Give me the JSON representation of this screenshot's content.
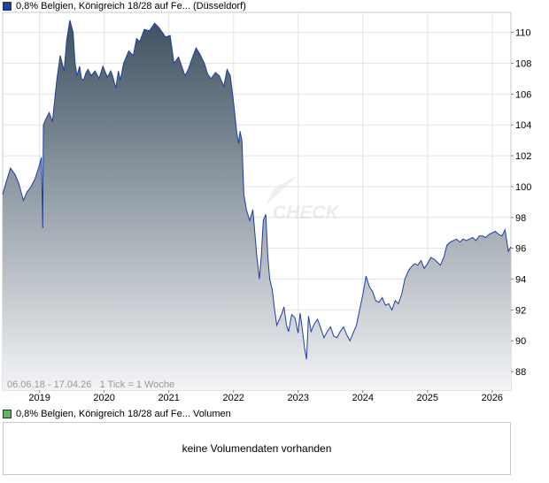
{
  "price_legend": {
    "label": "0,8% Belgien, Königreich 18/28 auf Fe... (Düsseldorf)",
    "color": "#1f3f9e"
  },
  "volume_legend": {
    "label": "0,8% Belgien, Königreich 18/28 auf Fe... Volumen",
    "color": "#5cb85c"
  },
  "watermark": "CHECK",
  "range_note": "06.06.18 - 17.04.26   1 Tick = 1 Woche",
  "volume_message": "keine Volumendaten vorhanden",
  "chart_data": {
    "type": "area",
    "x_ticks": [
      2019,
      2020,
      2021,
      2022,
      2023,
      2024,
      2025,
      2026
    ],
    "y_ticks": [
      88,
      90,
      92,
      94,
      96,
      98,
      100,
      102,
      104,
      106,
      108,
      110
    ],
    "xlim": [
      2018.43,
      2026.29
    ],
    "ylim": [
      86.8,
      111.3
    ],
    "grid": true,
    "line_color": "#1f3f9e",
    "fill_top_color": "#3e5160",
    "fill_bottom_color": "#f3f4f6",
    "series": [
      {
        "x": [
          2018.43,
          2018.5,
          2018.55,
          2018.62,
          2018.68,
          2018.75,
          2018.8,
          2018.87,
          2018.93,
          2019.0,
          2019.03,
          2019.05,
          2019.06,
          2019.1,
          2019.15,
          2019.2,
          2019.27,
          2019.32,
          2019.38,
          2019.42,
          2019.47,
          2019.52,
          2019.55,
          2019.58,
          2019.62,
          2019.65,
          2019.68,
          2019.72,
          2019.75,
          2019.8,
          2019.86,
          2019.92,
          2019.98,
          2020.05,
          2020.1,
          2020.13,
          2020.18,
          2020.22,
          2020.25,
          2020.3,
          2020.38,
          2020.45,
          2020.5,
          2020.55,
          2020.62,
          2020.7,
          2020.78,
          2020.85,
          2020.9,
          2020.95,
          2021.02,
          2021.08,
          2021.15,
          2021.2,
          2021.25,
          2021.3,
          2021.35,
          2021.42,
          2021.48,
          2021.55,
          2021.6,
          2021.65,
          2021.72,
          2021.78,
          2021.85,
          2021.9,
          2021.95,
          2022.0,
          2022.05,
          2022.08,
          2022.1,
          2022.13,
          2022.16,
          2022.2,
          2022.25,
          2022.3,
          2022.33,
          2022.36,
          2022.4,
          2022.43,
          2022.46,
          2022.5,
          2022.53,
          2022.56,
          2022.6,
          2022.63,
          2022.67,
          2022.72,
          2022.75,
          2022.78,
          2022.82,
          2022.85,
          2022.9,
          2022.95,
          2023.0,
          2023.03,
          2023.06,
          2023.1,
          2023.13,
          2023.16,
          2023.2,
          2023.25,
          2023.3,
          2023.35,
          2023.4,
          2023.45,
          2023.5,
          2023.55,
          2023.6,
          2023.65,
          2023.7,
          2023.75,
          2023.8,
          2023.85,
          2023.9,
          2023.95,
          2024.0,
          2024.05,
          2024.1,
          2024.15,
          2024.2,
          2024.25,
          2024.3,
          2024.35,
          2024.4,
          2024.45,
          2024.5,
          2024.55,
          2024.6,
          2024.65,
          2024.7,
          2024.75,
          2024.8,
          2024.85,
          2024.9,
          2024.95,
          2025.0,
          2025.05,
          2025.1,
          2025.15,
          2025.2,
          2025.25,
          2025.3,
          2025.35,
          2025.4,
          2025.45,
          2025.5,
          2025.55,
          2025.6,
          2025.65,
          2025.7,
          2025.75,
          2025.8,
          2025.85,
          2025.9,
          2025.95,
          2026.0,
          2026.05,
          2026.1,
          2026.15,
          2026.2,
          2026.25,
          2026.29
        ],
        "y": [
          99.5,
          100.5,
          101.2,
          100.8,
          100.2,
          99.1,
          99.6,
          100.0,
          100.5,
          101.4,
          101.9,
          97.3,
          104.0,
          104.4,
          104.8,
          104.2,
          107.0,
          108.5,
          107.5,
          109.5,
          110.8,
          110.0,
          108.0,
          107.2,
          107.8,
          107.0,
          106.9,
          107.4,
          107.6,
          107.2,
          107.5,
          107.0,
          107.8,
          107.1,
          107.5,
          107.2,
          106.4,
          107.5,
          106.9,
          108.0,
          108.8,
          108.5,
          109.6,
          109.4,
          110.2,
          110.1,
          110.6,
          110.3,
          110.0,
          109.7,
          109.8,
          108.0,
          108.4,
          107.8,
          107.2,
          107.6,
          108.2,
          109.0,
          108.6,
          108.0,
          107.3,
          107.0,
          107.4,
          107.2,
          106.5,
          107.6,
          107.2,
          105.5,
          103.5,
          102.8,
          103.6,
          103.0,
          99.5,
          98.5,
          97.8,
          98.5,
          97.0,
          95.5,
          94.0,
          95.5,
          97.8,
          98.2,
          95.5,
          94.0,
          93.3,
          92.2,
          91.0,
          91.5,
          91.8,
          92.2,
          91.0,
          90.6,
          91.7,
          91.5,
          90.5,
          91.8,
          90.9,
          89.5,
          88.8,
          91.6,
          90.6,
          91.1,
          91.4,
          90.8,
          90.2,
          90.6,
          90.9,
          90.3,
          90.2,
          90.6,
          90.9,
          90.4,
          90.0,
          90.5,
          91.0,
          92.0,
          93.0,
          94.2,
          93.5,
          93.2,
          92.6,
          92.5,
          92.8,
          92.3,
          92.4,
          92.0,
          92.6,
          92.4,
          93.0,
          94.0,
          94.5,
          94.8,
          95.0,
          94.9,
          95.2,
          94.7,
          95.0,
          95.4,
          95.3,
          95.1,
          94.9,
          95.4,
          96.2,
          96.4,
          96.5,
          96.6,
          96.4,
          96.6,
          96.5,
          96.6,
          96.7,
          96.5,
          96.8,
          96.8,
          96.7,
          96.9,
          97.0,
          97.1,
          96.9,
          96.8,
          97.2,
          95.8,
          96.1
        ]
      }
    ]
  }
}
